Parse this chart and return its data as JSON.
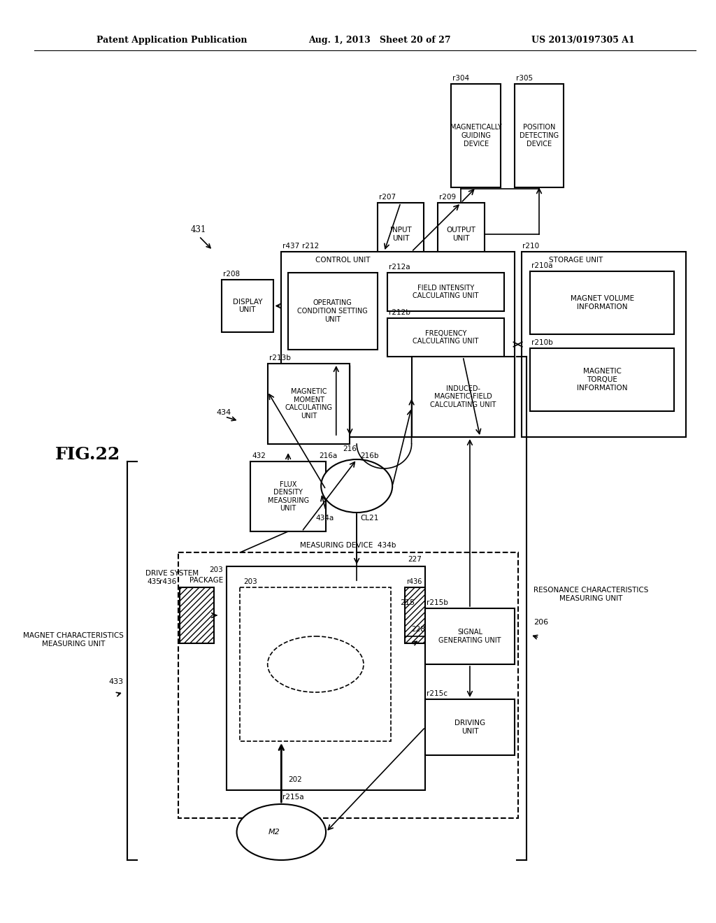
{
  "header_left": "Patent Application Publication",
  "header_center": "Aug. 1, 2013   Sheet 20 of 27",
  "header_right": "US 2013/0197305 A1",
  "bg_color": "#ffffff",
  "fig_label": "FIG.22"
}
